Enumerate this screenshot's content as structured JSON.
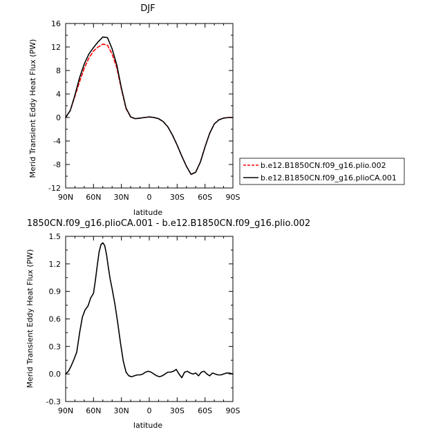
{
  "chart_data": [
    {
      "type": "line",
      "title": "DJF",
      "xlabel": "latitude",
      "ylabel": "Merid Transient Eddy Heat Flux (PW)",
      "xlim": [
        90,
        -90
      ],
      "ylim": [
        -12,
        16
      ],
      "x_ticks": [
        90,
        60,
        30,
        0,
        -30,
        -60,
        -90
      ],
      "x_tick_labels": [
        "90N",
        "60N",
        "30N",
        "0",
        "30S",
        "60S",
        "90S"
      ],
      "y_ticks": [
        -12,
        -8,
        -4,
        0,
        4,
        8,
        12,
        16
      ],
      "y_tick_labels": [
        "-12",
        "-8",
        "-4",
        "0",
        "4",
        "8",
        "12",
        "16"
      ],
      "legend_position": "right",
      "series": [
        {
          "name": "b.e12.B1850CN.f09_g16.plio.002",
          "color": "#ff0000",
          "dash": true,
          "x": [
            90,
            85,
            80,
            75,
            70,
            65,
            60,
            55,
            50,
            45,
            40,
            35,
            30,
            25,
            20,
            15,
            10,
            5,
            0,
            -5,
            -10,
            -15,
            -20,
            -25,
            -30,
            -35,
            -40,
            -45,
            -50,
            -55,
            -60,
            -65,
            -70,
            -75,
            -80,
            -85,
            -90
          ],
          "y": [
            0,
            1.2,
            3.6,
            6.1,
            8.4,
            10.1,
            11.3,
            12.0,
            12.5,
            12.3,
            10.8,
            8.5,
            4.8,
            1.5,
            0.1,
            -0.2,
            -0.1,
            0.0,
            0.1,
            0.0,
            -0.2,
            -0.7,
            -1.6,
            -3.0,
            -4.7,
            -6.6,
            -8.3,
            -9.7,
            -9.3,
            -7.6,
            -5.0,
            -2.7,
            -1.1,
            -0.4,
            -0.1,
            0.0,
            0.0
          ]
        },
        {
          "name": "b.e12.B1850CN.f09_g16.plioCA.001",
          "color": "#000000",
          "dash": false,
          "x": [
            90,
            85,
            80,
            75,
            70,
            65,
            60,
            55,
            50,
            45,
            40,
            35,
            30,
            25,
            20,
            15,
            10,
            5,
            0,
            -5,
            -10,
            -15,
            -20,
            -25,
            -30,
            -35,
            -40,
            -45,
            -50,
            -55,
            -60,
            -65,
            -70,
            -75,
            -80,
            -85,
            -90
          ],
          "y": [
            0,
            1.2,
            3.8,
            6.8,
            9.1,
            10.8,
            11.9,
            12.9,
            13.7,
            13.6,
            11.7,
            9.0,
            5.0,
            1.6,
            0.1,
            -0.2,
            -0.1,
            0.0,
            0.1,
            0.0,
            -0.2,
            -0.7,
            -1.6,
            -3.0,
            -4.7,
            -6.6,
            -8.3,
            -9.7,
            -9.3,
            -7.6,
            -5.0,
            -2.7,
            -1.1,
            -0.4,
            -0.1,
            0.0,
            0.0
          ]
        }
      ]
    },
    {
      "type": "line",
      "title": "1850CN.f09_g16.plioCA.001 - b.e12.B1850CN.f09_g16.plio.002",
      "xlabel": "latitude",
      "ylabel": "Merid Transient Eddy Heat Flux (PW)",
      "xlim": [
        90,
        -90
      ],
      "ylim": [
        -0.3,
        1.5
      ],
      "x_ticks": [
        90,
        60,
        30,
        0,
        -30,
        -60,
        -90
      ],
      "x_tick_labels": [
        "90N",
        "60N",
        "30N",
        "0",
        "30S",
        "60S",
        "90S"
      ],
      "y_ticks": [
        -0.3,
        0.0,
        0.3,
        0.6,
        0.9,
        1.2,
        1.5
      ],
      "y_tick_labels": [
        "-0.3",
        "0.0",
        "0.3",
        "0.6",
        "0.9",
        "1.2",
        "1.5"
      ],
      "series": [
        {
          "color": "#000000",
          "dash": false,
          "x": [
            90,
            87,
            84,
            81,
            78,
            75,
            72,
            69,
            66,
            63,
            60,
            58,
            56,
            54,
            52,
            50,
            48,
            46,
            44,
            42,
            40,
            37,
            34,
            31,
            28,
            25,
            22,
            19,
            16,
            13,
            10,
            7,
            4,
            1,
            -2,
            -5,
            -8,
            -11,
            -14,
            -17,
            -20,
            -23,
            -26,
            -29,
            -32,
            -35,
            -38,
            -41,
            -44,
            -47,
            -50,
            -53,
            -56,
            -59,
            -62,
            -65,
            -68,
            -71,
            -74,
            -77,
            -80,
            -83,
            -86,
            -90
          ],
          "y": [
            0,
            0.03,
            0.09,
            0.16,
            0.24,
            0.45,
            0.62,
            0.7,
            0.74,
            0.83,
            0.88,
            1.02,
            1.18,
            1.33,
            1.41,
            1.43,
            1.4,
            1.3,
            1.16,
            1.03,
            0.93,
            0.76,
            0.56,
            0.34,
            0.14,
            0.02,
            -0.02,
            -0.03,
            -0.02,
            -0.01,
            -0.01,
            0.0,
            0.02,
            0.03,
            0.02,
            0.0,
            -0.02,
            -0.03,
            -0.02,
            0.0,
            0.02,
            0.02,
            0.03,
            0.05,
            0.0,
            -0.04,
            0.02,
            0.03,
            0.01,
            0.0,
            0.01,
            -0.02,
            0.02,
            0.03,
            0.0,
            -0.02,
            0.01,
            0.0,
            -0.01,
            -0.01,
            0.0,
            0.01,
            0.01,
            0.0
          ]
        }
      ]
    }
  ]
}
